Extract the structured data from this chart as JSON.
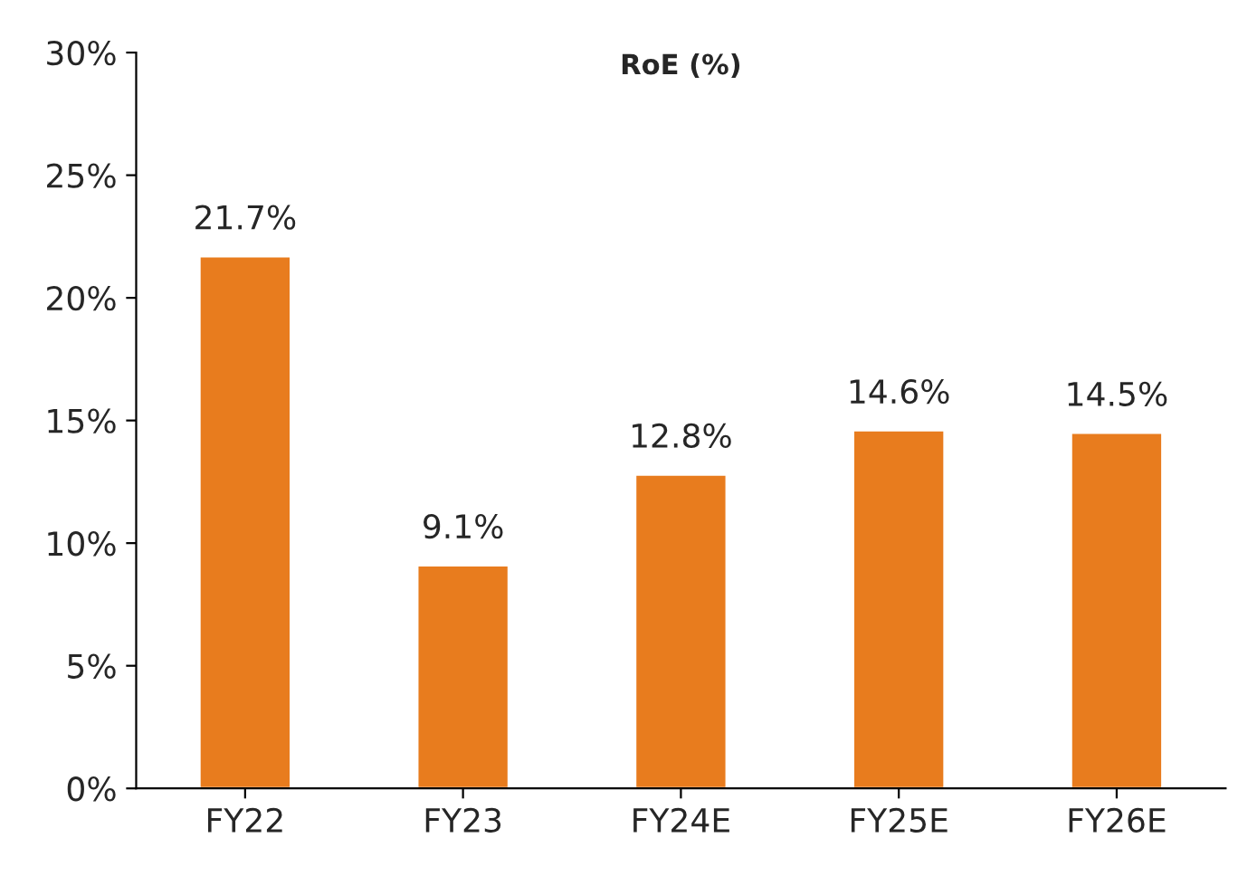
{
  "chart_data": {
    "type": "bar",
    "title": "RoE (%)",
    "categories": [
      "FY22",
      "FY23",
      "FY24E",
      "FY25E",
      "FY26E"
    ],
    "values": [
      21.7,
      9.1,
      12.8,
      14.6,
      14.5
    ],
    "value_labels": [
      "21.7%",
      "9.1%",
      "12.8%",
      "14.6%",
      "14.5%"
    ],
    "color": "#e87c1e",
    "ylim": [
      0,
      30
    ],
    "yticks": [
      {
        "value": 0,
        "label": "0%"
      },
      {
        "value": 5,
        "label": "5%"
      },
      {
        "value": 10,
        "label": "10%"
      },
      {
        "value": 15,
        "label": "15%"
      },
      {
        "value": 20,
        "label": "20%"
      },
      {
        "value": 25,
        "label": "25%"
      },
      {
        "value": 30,
        "label": "30%"
      }
    ],
    "grid": false,
    "legend": false
  }
}
